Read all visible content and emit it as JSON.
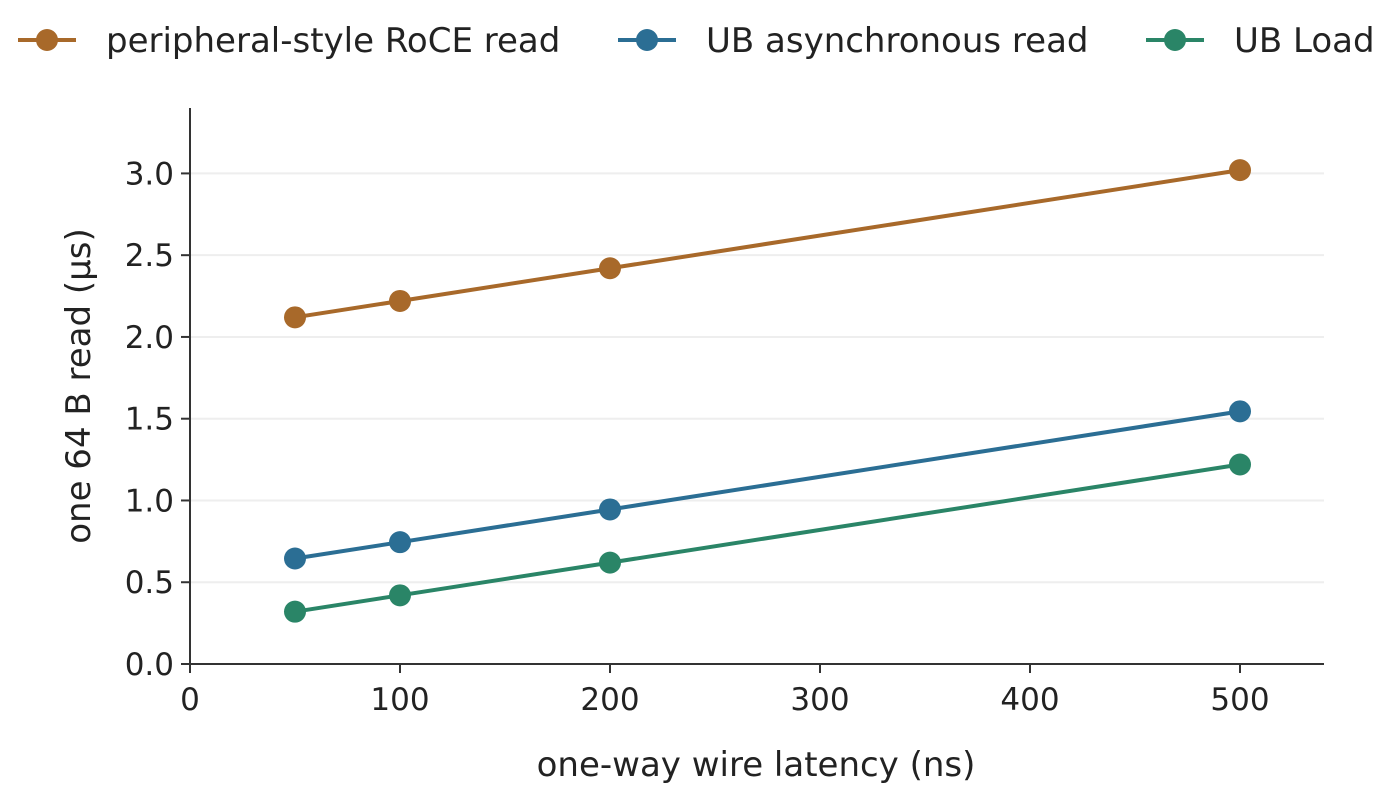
{
  "chart_data": {
    "type": "line",
    "title": "",
    "xlabel": "one-way wire latency (ns)",
    "ylabel": "one 64 B read (µs)",
    "xlim": [
      0,
      540
    ],
    "ylim": [
      0,
      3.4
    ],
    "xticks": [
      0,
      100,
      200,
      300,
      400,
      500
    ],
    "xtick_labels": [
      "0",
      "100",
      "200",
      "300",
      "400",
      "500"
    ],
    "yticks": [
      0.0,
      0.5,
      1.0,
      1.5,
      2.0,
      2.5,
      3.0
    ],
    "ytick_labels": [
      "0.0",
      "0.5",
      "1.0",
      "1.5",
      "2.0",
      "2.5",
      "3.0"
    ],
    "grid": "horizontal",
    "legend_position": "top",
    "x": [
      50,
      100,
      200,
      500
    ],
    "series": [
      {
        "name": "peripheral-style RoCE read",
        "color": "#A8692A",
        "values": [
          2.12,
          2.22,
          2.42,
          3.02
        ]
      },
      {
        "name": "UB asynchronous read",
        "color": "#2B6E94",
        "values": [
          0.645,
          0.745,
          0.945,
          1.545
        ]
      },
      {
        "name": "UB Load",
        "color": "#2A8567",
        "values": [
          0.32,
          0.42,
          0.62,
          1.22
        ]
      }
    ]
  }
}
